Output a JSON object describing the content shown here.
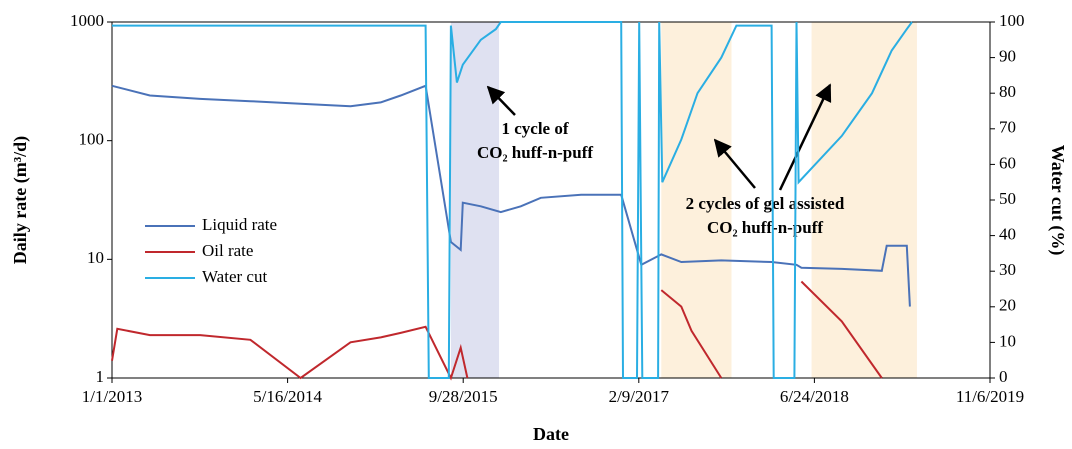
{
  "chart_data": {
    "type": "line",
    "log_y": true,
    "x_label": "Date",
    "y_label": "Daily rate (m³/d)",
    "y2_label": "Water cut (%)",
    "xlim": [
      "1/1/2013",
      "11/6/2019"
    ],
    "xticks": [
      "1/1/2013",
      "5/16/2014",
      "9/28/2015",
      "2/9/2017",
      "6/24/2018",
      "11/6/2019"
    ],
    "ylim": [
      1,
      1000
    ],
    "yticks": [
      1,
      10,
      100,
      1000
    ],
    "y2lim": [
      0,
      100
    ],
    "y2ticks": [
      0,
      10,
      20,
      30,
      40,
      50,
      60,
      70,
      80,
      90,
      100
    ],
    "legend": "left",
    "shaded_regions": [
      {
        "start": "8/24/2015",
        "end": "1/8/2016",
        "color": "#dfe1f1"
      },
      {
        "start": "4/14/2017",
        "end": "10/31/2017",
        "color": "#fdf0dc"
      },
      {
        "start": "6/16/2018",
        "end": "4/12/2019",
        "color": "#fdf0dc"
      }
    ],
    "annotations": [
      "1 cycle of",
      "CO₂ huff-n-puff",
      "2 cycles of gel assisted",
      "CO₂ huff-n-puff"
    ],
    "series": [
      {
        "name": "Liquid rate",
        "color": "#4a72b8",
        "axis": "y",
        "x": [
          "1/1/2013",
          "4/19/2013",
          "9/9/2013",
          "1/30/2014",
          "6/22/2014",
          "11/11/2014",
          "2/5/2015",
          "4/3/2015",
          "6/13/2015",
          "8/24/2015",
          "9/21/2015",
          "9/27/2015",
          "11/17/2015",
          "1/13/2016",
          "3/10/2016",
          "5/6/2016",
          "8/29/2016",
          "12/21/2016",
          "2/16/2017",
          "4/14/2017",
          "6/10/2017",
          "10/2/2017",
          "2/22/2018",
          "5/4/2018",
          "5/18/2018",
          "9/10/2018",
          "1/2/2019",
          "1/16/2019",
          "3/14/2019",
          "3/23/2019"
        ],
        "values": [
          290,
          240,
          225,
          215,
          205,
          195,
          210,
          240,
          290,
          14,
          12,
          30,
          28,
          25,
          28,
          33,
          35,
          35,
          9,
          11,
          9.5,
          9.8,
          9.5,
          9,
          8.5,
          8.3,
          8,
          13,
          13,
          4
        ]
      },
      {
        "name": "Oil rate",
        "color": "#c0282d",
        "axis": "y",
        "x": [
          "1/1/2013",
          "1/16/2013",
          "4/19/2013",
          "9/9/2013",
          "1/30/2014",
          "6/22/2014",
          "11/11/2014",
          "2/5/2015",
          "4/3/2015",
          "6/13/2015",
          "8/24/2015",
          "9/21/2015",
          "10/10/2015",
          "1/13/2016",
          "4/14/2017",
          "6/10/2017",
          "7/9/2017",
          "10/2/2017",
          "2/22/2018",
          "5/18/2018",
          "9/10/2018",
          "1/2/2019"
        ],
        "values": [
          1.4,
          2.6,
          2.3,
          2.3,
          2.1,
          1,
          2.0,
          2.2,
          2.4,
          2.7,
          1,
          1.8,
          1,
          null,
          5.5,
          4,
          2.5,
          1,
          null,
          6.5,
          3,
          1
        ]
      },
      {
        "name": "Water cut",
        "color": "#2aaee3",
        "axis": "y2",
        "x": [
          "1/1/2013",
          "6/13/2015",
          "6/22/2015",
          "8/18/2015",
          "8/24/2015",
          "9/10/2015",
          "9/27/2015",
          "11/17/2015",
          "12/30/2015",
          "1/13/2016",
          "12/21/2016",
          "12/26/2016",
          "2/4/2017",
          "2/10/2017",
          "2/19/2017",
          "4/5/2017",
          "4/8/2017",
          "4/17/2017",
          "6/10/2017",
          "7/26/2017",
          "10/2/2017",
          "11/14/2017",
          "2/22/2018",
          "2/28/2018",
          "4/28/2018",
          "5/4/2018",
          "5/10/2018",
          "9/10/2018",
          "12/5/2018",
          "1/30/2019",
          "3/14/2019",
          "3/29/2019"
        ],
        "values": [
          99,
          99,
          0,
          0,
          99,
          83,
          88,
          95,
          98,
          100,
          100,
          0,
          0,
          100,
          0,
          0,
          100,
          55,
          67,
          80,
          90,
          99,
          99,
          0,
          0,
          100,
          55,
          68,
          80,
          92,
          98,
          100
        ]
      }
    ]
  }
}
